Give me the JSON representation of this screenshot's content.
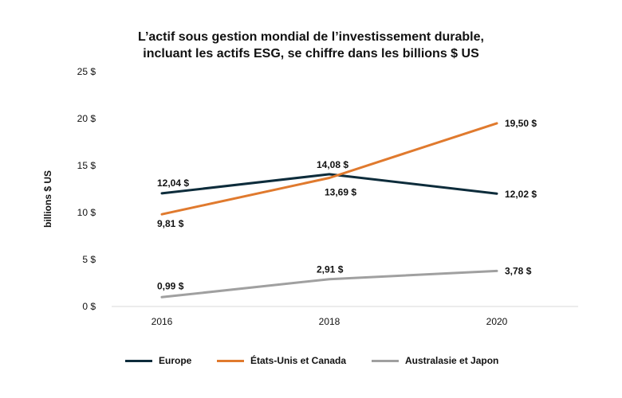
{
  "chart_data": {
    "type": "line",
    "title_line1": "L’actif sous gestion mondial de l’investissement durable,",
    "title_line2": "incluant les actifs ESG, se chiffre dans les billions $ US",
    "ylabel": "billions $ US",
    "xlabel": "",
    "x": [
      "2016",
      "2018",
      "2020"
    ],
    "ylim": [
      0,
      25
    ],
    "yticks": [
      0,
      5,
      10,
      15,
      20,
      25
    ],
    "ytick_labels": [
      "0 $",
      "5 $",
      "10 $",
      "15 $",
      "20 $",
      "25 $"
    ],
    "grid": false,
    "legend_position": "bottom",
    "series": [
      {
        "name": "Europe",
        "color": "#0d2c3b",
        "values": [
          12.04,
          14.08,
          12.02
        ],
        "labels": [
          "12,04 $",
          "14,08 $",
          "12,02 $"
        ]
      },
      {
        "name": "États-Unis et Canada",
        "color": "#e07a2e",
        "values": [
          9.81,
          13.69,
          19.5
        ],
        "labels": [
          "9,81 $",
          "13,69 $",
          "19,50 $"
        ]
      },
      {
        "name": "Australasie et Japon",
        "color": "#a0a0a0",
        "values": [
          0.99,
          2.91,
          3.78
        ],
        "labels": [
          "0,99 $",
          "2,91 $",
          "3,78 $"
        ]
      }
    ]
  }
}
